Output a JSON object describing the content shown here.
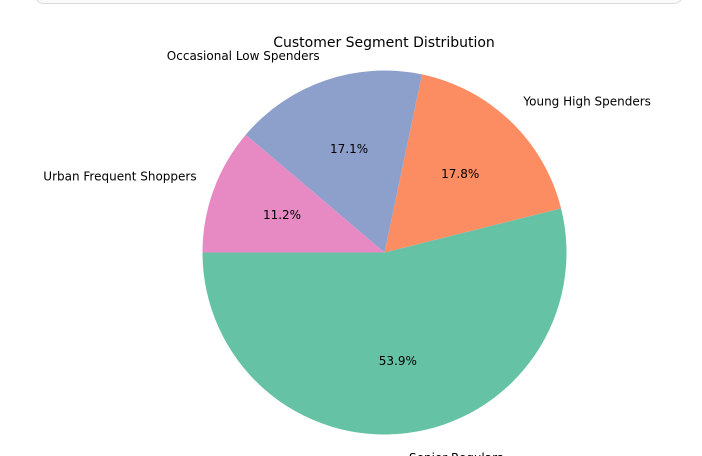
{
  "chart_data": {
    "type": "pie",
    "title": "Customer Segment Distribution",
    "startangle_deg": 180,
    "direction": "counterclockwise",
    "slices": [
      {
        "label": "Senior Regulars",
        "value": 53.9,
        "pct_label": "53.9%",
        "color": "#66c2a5"
      },
      {
        "label": "Young High Spenders",
        "value": 17.8,
        "pct_label": "17.8%",
        "color": "#fc8d62"
      },
      {
        "label": "Occasional Low Spenders",
        "value": 17.1,
        "pct_label": "17.1%",
        "color": "#8da0cb"
      },
      {
        "label": "Urban Frequent Shoppers",
        "value": 11.2,
        "pct_label": "11.2%",
        "color": "#e78ac3"
      }
    ]
  }
}
